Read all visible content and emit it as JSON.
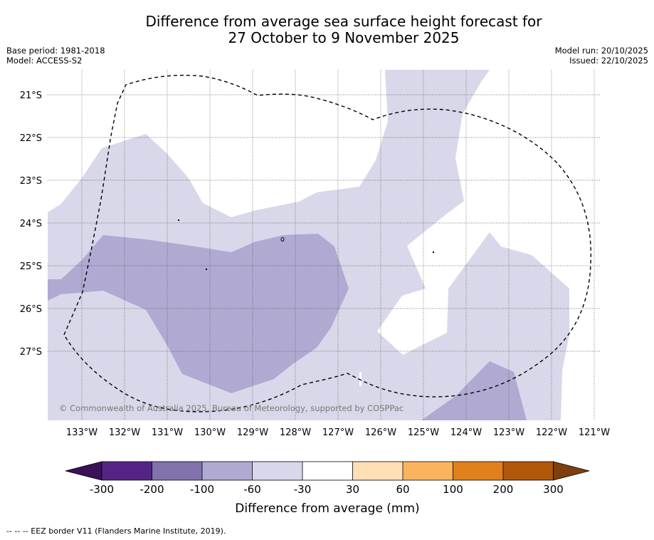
{
  "title": {
    "line1": "Difference from average sea surface height forecast for",
    "line2": "27 October to 9 November 2025"
  },
  "meta": {
    "base_period": "Base period: 1981-2018",
    "model": "Model: ACCESS-S2",
    "model_run": "Model run: 20/10/2025",
    "issued": "Issued: 22/10/2025"
  },
  "map": {
    "lat_labels": [
      "21°S",
      "22°S",
      "23°S",
      "24°S",
      "25°S",
      "26°S",
      "27°S"
    ],
    "lon_labels": [
      "133°W",
      "132°W",
      "131°W",
      "130°W",
      "129°W",
      "128°W",
      "127°W",
      "126°W",
      "125°W",
      "124°W",
      "123°W",
      "122°W",
      "121°W"
    ],
    "copyright": "© Commonwealth of Australia 2025, Bureau of Meteorology, supported by COSPPac",
    "colors": {
      "class_minus60_minus30": "#d8d8ea",
      "class_minus100_minus60": "#b0aad2",
      "class_minus30_30": "#ffffff",
      "eez_line": "#000000"
    }
  },
  "colorbar": {
    "title": "Difference from average (mm)",
    "tick_labels": [
      "-300",
      "-200",
      "-100",
      "-60",
      "-30",
      "30",
      "60",
      "100",
      "200",
      "300"
    ],
    "colors": [
      "#3a1258",
      "#552487",
      "#8172ab",
      "#b0aad2",
      "#d8d8ea",
      "#ffffff",
      "#ffdfb5",
      "#fbb45e",
      "#e0801c",
      "#b0580a",
      "#7f3f0c"
    ]
  },
  "footer": {
    "eez_note": "--  --  -- EEZ border V11 (Flanders Marine Institute, 2019)."
  }
}
